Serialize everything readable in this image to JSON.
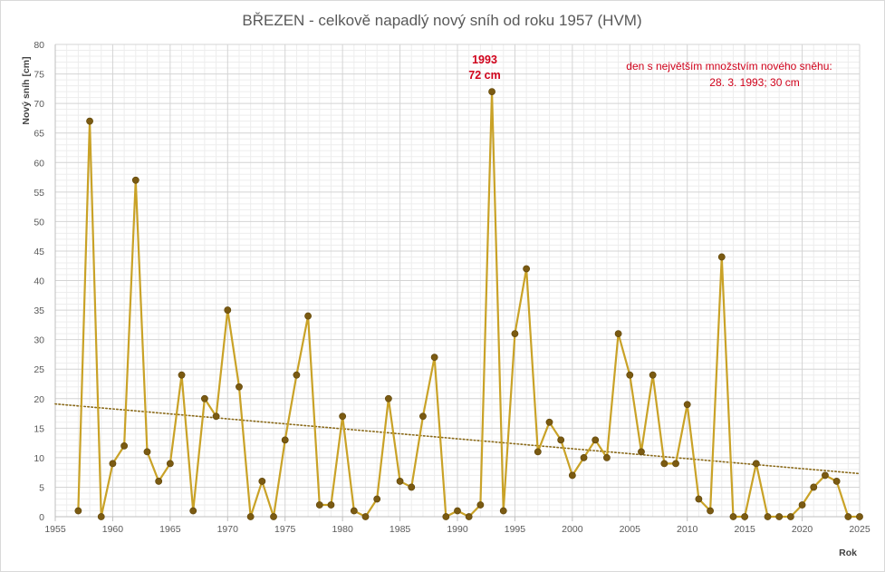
{
  "chart_data": {
    "type": "line",
    "title": "BŘEZEN - celkově napadlý nový sníh od roku 1957 (HVM)",
    "xlabel": "Rok",
    "ylabel": "Nový sníh [cm]",
    "xlim": [
      1955,
      2025
    ],
    "ylim": [
      0,
      80
    ],
    "x_ticks": [
      1955,
      1960,
      1965,
      1970,
      1975,
      1980,
      1985,
      1990,
      1995,
      2000,
      2005,
      2010,
      2015,
      2020,
      2025
    ],
    "y_ticks": [
      0,
      5,
      10,
      15,
      20,
      25,
      30,
      35,
      40,
      45,
      50,
      55,
      60,
      65,
      70,
      75,
      80
    ],
    "grid": "major and minor",
    "legend": "none",
    "series": [
      {
        "x": [
          1957,
          1958,
          1959,
          1960,
          1961,
          1962,
          1963,
          1964,
          1965,
          1966,
          1967,
          1968,
          1969,
          1970,
          1971,
          1972,
          1973,
          1974,
          1975,
          1976,
          1977,
          1978,
          1979,
          1980,
          1981,
          1982,
          1983,
          1984,
          1985,
          1986,
          1987,
          1988,
          1989,
          1990,
          1991,
          1992,
          1993,
          1994,
          1995,
          1996,
          1997,
          1998,
          1999,
          2000,
          2001,
          2002,
          2003,
          2004,
          2005,
          2006,
          2007,
          2008,
          2009,
          2010,
          2011,
          2012,
          2013,
          2014,
          2015,
          2016,
          2017,
          2018,
          2019,
          2020,
          2021,
          2022,
          2023,
          2024,
          2025
        ],
        "values": [
          1,
          67,
          0,
          9,
          12,
          57,
          11,
          6,
          9,
          24,
          1,
          20,
          17,
          35,
          22,
          0,
          6,
          0,
          13,
          24,
          34,
          2,
          2,
          17,
          1,
          0,
          3,
          20,
          6,
          5,
          17,
          27,
          0,
          1,
          0,
          2,
          72,
          1,
          31,
          42,
          11,
          16,
          13,
          7,
          10,
          13,
          10,
          31,
          24,
          11,
          24,
          9,
          9,
          19,
          3,
          1,
          44,
          0,
          0,
          9,
          0,
          0,
          0,
          2,
          5,
          7,
          6,
          0,
          0
        ],
        "color": "#c9a227",
        "marker_color": "#7a5a12"
      }
    ],
    "trendline": {
      "type": "linear",
      "x": [
        1955,
        2025
      ],
      "values": [
        19.1,
        7.3
      ],
      "color": "#8a6a1a",
      "style": "dotted"
    },
    "annotations": {
      "peak_year": "1993",
      "peak_value": "72 cm",
      "note_line1": "den s největším množstvím nového sněhu:",
      "note_line2": "28. 3. 1993;  30 cm",
      "color": "#d0021b"
    }
  }
}
